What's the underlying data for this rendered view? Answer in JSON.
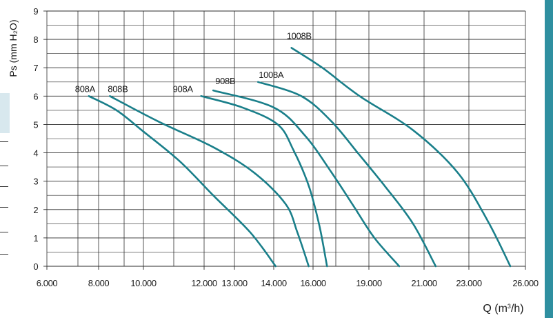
{
  "colors": {
    "curve": "#1a7f8a",
    "grid": "#2b2b2b",
    "text": "#1a1a1a"
  },
  "chart_data": {
    "type": "line",
    "ylabel": "Ps (mm H₂O)",
    "xlabel": "Q (m³/h)",
    "xlabel_html": "Q (m<tspan dy='-5' font-size='9'>3</tspan><tspan dy='5'>/h)</tspan>",
    "x_tick_labels": [
      "6.000",
      "8.000",
      "10.000",
      "12.000",
      "13.000",
      "14.000",
      "16.000",
      "19.000",
      "21.000",
      "23.000",
      "26.000"
    ],
    "y_tick_labels": [
      "0",
      "1",
      "2",
      "3",
      "4",
      "5",
      "6",
      "7",
      "8",
      "9"
    ],
    "ylim": [
      0,
      9
    ],
    "grid": true,
    "series": [
      {
        "name": "808A",
        "points": [
          [
            7.62,
            6.0
          ],
          [
            8.8,
            5.5
          ],
          [
            10.0,
            4.75
          ],
          [
            11.2,
            3.7
          ],
          [
            12.3,
            2.5
          ],
          [
            13.4,
            1.2
          ],
          [
            14.1,
            0.0
          ]
        ]
      },
      {
        "name": "808B",
        "points": [
          [
            8.5,
            6.0
          ],
          [
            10.5,
            5.1
          ],
          [
            12.3,
            4.2
          ],
          [
            13.5,
            3.3
          ],
          [
            14.6,
            2.2
          ],
          [
            15.2,
            1.2
          ],
          [
            15.78,
            0.0
          ]
        ]
      },
      {
        "name": "908A",
        "points": [
          [
            11.9,
            6.0
          ],
          [
            13.2,
            5.6
          ],
          [
            14.2,
            5.0
          ],
          [
            15.0,
            4.1
          ],
          [
            15.8,
            2.8
          ],
          [
            16.35,
            1.4
          ],
          [
            16.75,
            0.0
          ]
        ]
      },
      {
        "name": "908B",
        "points": [
          [
            12.3,
            6.2
          ],
          [
            14.0,
            5.6
          ],
          [
            15.6,
            4.6
          ],
          [
            17.0,
            3.3
          ],
          [
            18.2,
            2.1
          ],
          [
            19.2,
            1.0
          ],
          [
            20.1,
            0.0
          ]
        ]
      },
      {
        "name": "1008A",
        "points": [
          [
            13.6,
            6.5
          ],
          [
            15.4,
            6.0
          ],
          [
            17.0,
            5.1
          ],
          [
            18.4,
            4.0
          ],
          [
            19.6,
            2.8
          ],
          [
            20.6,
            1.5
          ],
          [
            21.52,
            0.0
          ]
        ]
      },
      {
        "name": "1008B",
        "points": [
          [
            14.9,
            7.7
          ],
          [
            16.5,
            7.0
          ],
          [
            18.5,
            6.0
          ],
          [
            20.6,
            4.8
          ],
          [
            22.5,
            3.3
          ],
          [
            24.0,
            1.6
          ],
          [
            25.2,
            0.0
          ]
        ]
      }
    ]
  }
}
